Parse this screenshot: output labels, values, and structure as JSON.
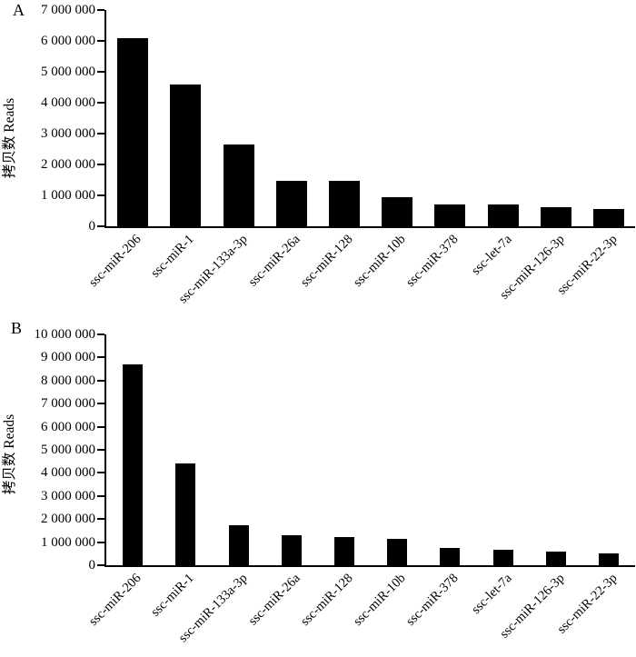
{
  "figure": {
    "background": "#ffffff",
    "text_color": "#000000"
  },
  "chart_data": [
    {
      "type": "bar",
      "panel_label": "A",
      "title": "",
      "xlabel": "",
      "ylabel": "拷贝数 Reads",
      "bar_color": "#000000",
      "grid": false,
      "legend": null,
      "ylim": [
        0,
        7000000
      ],
      "ytick_interval": 1000000,
      "ytick_labels": [
        "0",
        "1 000 000",
        "2 000 000",
        "3 000 000",
        "4 000 000",
        "5 000 000",
        "6 000 000",
        "7 000 000"
      ],
      "categories": [
        "ssc-miR-206",
        "ssc-miR-1",
        "ssc-miR-133a-3p",
        "ssc-miR-26a",
        "ssc-miR-128",
        "ssc-miR-10b",
        "ssc-miR-378",
        "ssc-let-7a",
        "ssc-miR-126-3p",
        "ssc-miR-22-3p"
      ],
      "values": [
        6100000,
        4600000,
        2650000,
        1470000,
        1460000,
        950000,
        720000,
        710000,
        610000,
        560000
      ]
    },
    {
      "type": "bar",
      "panel_label": "B",
      "title": "",
      "xlabel": "",
      "ylabel": "拷贝数 Reads",
      "bar_color": "#000000",
      "grid": false,
      "legend": null,
      "ylim": [
        0,
        10000000
      ],
      "ytick_interval": 1000000,
      "ytick_labels": [
        "0",
        "1 000 000",
        "2 000 000",
        "3 000 000",
        "4 000 000",
        "5 000 000",
        "6 000 000",
        "7 000 000",
        "8 000 000",
        "9 000 000",
        "10 000 000"
      ],
      "categories": [
        "ssc-miR-206",
        "ssc-miR-1",
        "ssc-miR-133a-3p",
        "ssc-miR-26a",
        "ssc-miR-128",
        "ssc-miR-10b",
        "ssc-miR-378",
        "ssc-let-7a",
        "ssc-miR-126-3p",
        "ssc-miR-22-3p"
      ],
      "values": [
        8700000,
        4400000,
        1750000,
        1300000,
        1230000,
        1130000,
        760000,
        670000,
        590000,
        520000
      ]
    }
  ]
}
